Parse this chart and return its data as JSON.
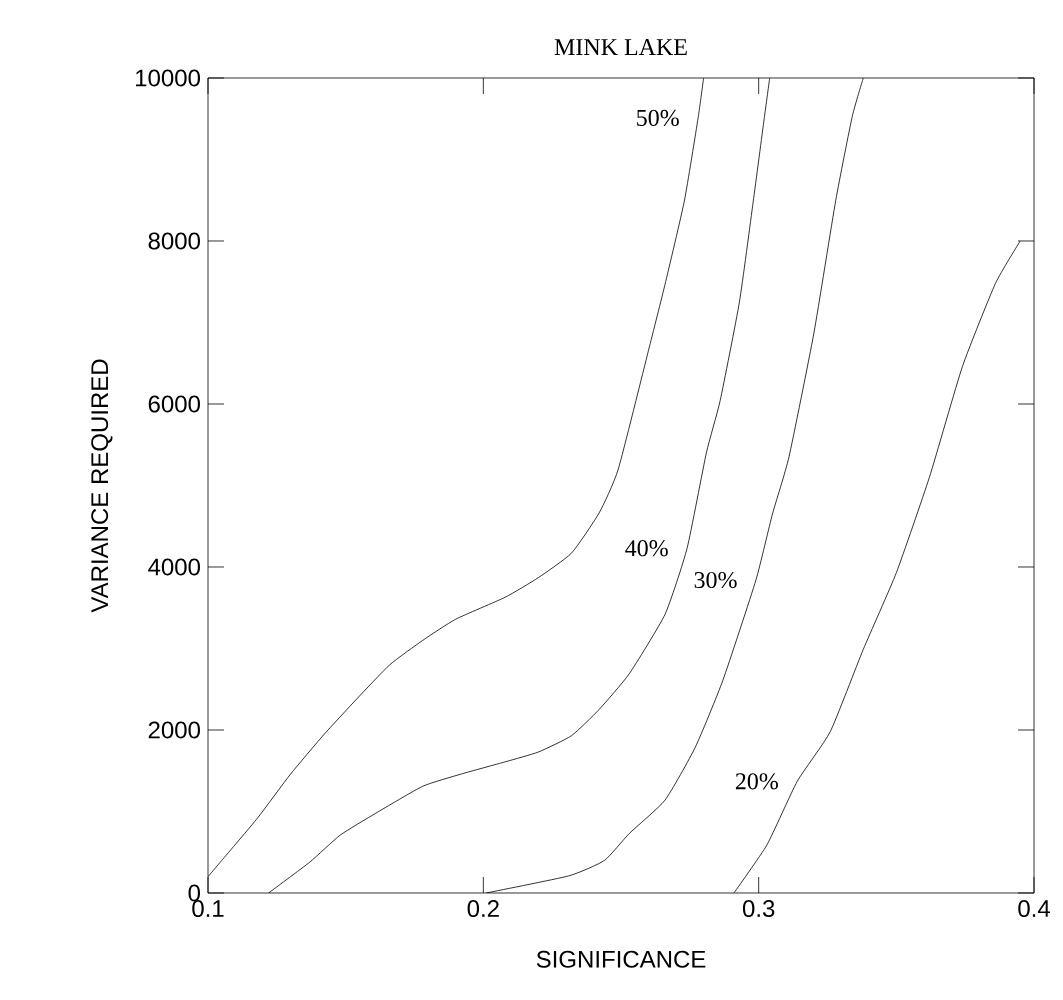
{
  "chart_data": {
    "type": "line",
    "title": "MINK LAKE",
    "xlabel": "SIGNIFICANCE",
    "ylabel": "VARIANCE REQUIRED",
    "xlim": [
      0.1,
      0.4
    ],
    "ylim": [
      0,
      10000
    ],
    "xticks": [
      0.1,
      0.2,
      0.3,
      0.4
    ],
    "yticks": [
      0,
      2000,
      4000,
      6000,
      8000,
      10000
    ],
    "grid": false,
    "marker": "none",
    "line_style": "solid",
    "series": [
      {
        "name": "50%",
        "color": "#000000",
        "x": [
          0.1,
          0.105,
          0.118,
          0.13,
          0.142,
          0.154,
          0.166,
          0.178,
          0.19,
          0.208,
          0.22,
          0.232,
          0.242,
          0.249,
          0.26,
          0.266,
          0.273,
          0.278,
          0.28
        ],
        "values": [
          200,
          400,
          920,
          1460,
          1940,
          2380,
          2800,
          3100,
          3360,
          3630,
          3870,
          4170,
          4660,
          5200,
          6660,
          7470,
          8490,
          9510,
          10000
        ]
      },
      {
        "name": "40%",
        "color": "#000000",
        "x": [
          0.122,
          0.137,
          0.148,
          0.161,
          0.178,
          0.192,
          0.208,
          0.22,
          0.232,
          0.242,
          0.253,
          0.266,
          0.274,
          0.281,
          0.286,
          0.293,
          0.298,
          0.302,
          0.304
        ],
        "values": [
          0,
          380,
          710,
          980,
          1310,
          1460,
          1610,
          1730,
          1930,
          2250,
          2690,
          3420,
          4230,
          5400,
          6040,
          7250,
          8480,
          9500,
          10000
        ]
      },
      {
        "name": "30%",
        "color": "#000000",
        "x": [
          0.201,
          0.231,
          0.244,
          0.253,
          0.266,
          0.277,
          0.287,
          0.299,
          0.305,
          0.311,
          0.32,
          0.328,
          0.334,
          0.338
        ],
        "values": [
          0,
          210,
          400,
          730,
          1140,
          1790,
          2610,
          3840,
          4650,
          5350,
          6860,
          8500,
          9530,
          10000
        ]
      },
      {
        "name": "20%",
        "color": "#000000",
        "x": [
          0.291,
          0.303,
          0.314,
          0.326,
          0.338,
          0.35,
          0.362,
          0.374,
          0.386,
          0.395
        ],
        "values": [
          0,
          590,
          1370,
          1980,
          2990,
          3930,
          5100,
          6460,
          7480,
          8000
        ]
      }
    ]
  }
}
